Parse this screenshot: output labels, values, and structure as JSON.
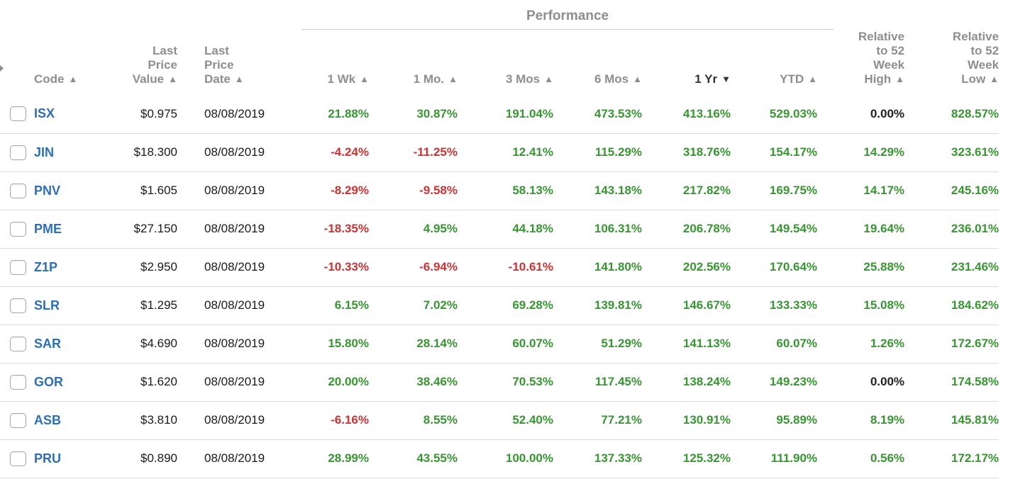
{
  "colors": {
    "positive": "#389632",
    "negative": "#cc3333",
    "neutral": "#222222",
    "code_link": "#2e6eb5",
    "header_gray": "#8e8e8e",
    "header_active": "#333333",
    "row_divider": "#dcdcdc",
    "group_line": "#cccccc"
  },
  "sort_icons": {
    "asc": "▲",
    "desc": "▼"
  },
  "table": {
    "group_header": {
      "label": "Performance"
    },
    "columns": [
      {
        "id": "select",
        "lines": []
      },
      {
        "id": "code",
        "lines": [
          "Code"
        ],
        "sort": "asc"
      },
      {
        "id": "value",
        "lines": [
          "Last",
          "Price",
          "Value"
        ],
        "sort": "asc"
      },
      {
        "id": "date",
        "lines": [
          "Last",
          "Price",
          "Date"
        ],
        "sort": "asc"
      },
      {
        "id": "wk1",
        "lines": [
          "1 Wk"
        ],
        "sort": "asc"
      },
      {
        "id": "mo1",
        "lines": [
          "1 Mo."
        ],
        "sort": "asc"
      },
      {
        "id": "mos3",
        "lines": [
          "3 Mos"
        ],
        "sort": "asc"
      },
      {
        "id": "mos6",
        "lines": [
          "6 Mos"
        ],
        "sort": "asc"
      },
      {
        "id": "yr1",
        "lines": [
          "1 Yr"
        ],
        "sort": "desc",
        "active": true
      },
      {
        "id": "ytd",
        "lines": [
          "YTD"
        ],
        "sort": "asc"
      },
      {
        "id": "rel_high",
        "lines": [
          "Relative",
          "to 52",
          "Week",
          "High"
        ],
        "sort": "asc"
      },
      {
        "id": "rel_low",
        "lines": [
          "Relative",
          "to 52",
          "Week",
          "Low"
        ],
        "sort": "asc"
      }
    ],
    "rows": [
      {
        "code": "ISX",
        "value": "$0.975",
        "date": "08/08/2019",
        "perf": [
          "21.88%",
          "30.87%",
          "191.04%",
          "473.53%",
          "413.16%",
          "529.03%",
          "0.00%",
          "828.57%"
        ]
      },
      {
        "code": "JIN",
        "value": "$18.300",
        "date": "08/08/2019",
        "perf": [
          "-4.24%",
          "-11.25%",
          "12.41%",
          "115.29%",
          "318.76%",
          "154.17%",
          "14.29%",
          "323.61%"
        ]
      },
      {
        "code": "PNV",
        "value": "$1.605",
        "date": "08/08/2019",
        "perf": [
          "-8.29%",
          "-9.58%",
          "58.13%",
          "143.18%",
          "217.82%",
          "169.75%",
          "14.17%",
          "245.16%"
        ]
      },
      {
        "code": "PME",
        "value": "$27.150",
        "date": "08/08/2019",
        "perf": [
          "-18.35%",
          "4.95%",
          "44.18%",
          "106.31%",
          "206.78%",
          "149.54%",
          "19.64%",
          "236.01%"
        ]
      },
      {
        "code": "Z1P",
        "value": "$2.950",
        "date": "08/08/2019",
        "perf": [
          "-10.33%",
          "-6.94%",
          "-10.61%",
          "141.80%",
          "202.56%",
          "170.64%",
          "25.88%",
          "231.46%"
        ]
      },
      {
        "code": "SLR",
        "value": "$1.295",
        "date": "08/08/2019",
        "perf": [
          "6.15%",
          "7.02%",
          "69.28%",
          "139.81%",
          "146.67%",
          "133.33%",
          "15.08%",
          "184.62%"
        ]
      },
      {
        "code": "SAR",
        "value": "$4.690",
        "date": "08/08/2019",
        "perf": [
          "15.80%",
          "28.14%",
          "60.07%",
          "51.29%",
          "141.13%",
          "60.07%",
          "1.26%",
          "172.67%"
        ]
      },
      {
        "code": "GOR",
        "value": "$1.620",
        "date": "08/08/2019",
        "perf": [
          "20.00%",
          "38.46%",
          "70.53%",
          "117.45%",
          "138.24%",
          "149.23%",
          "0.00%",
          "174.58%"
        ]
      },
      {
        "code": "ASB",
        "value": "$3.810",
        "date": "08/08/2019",
        "perf": [
          "-6.16%",
          "8.55%",
          "52.40%",
          "77.21%",
          "130.91%",
          "95.89%",
          "8.19%",
          "145.81%"
        ]
      },
      {
        "code": "PRU",
        "value": "$0.890",
        "date": "08/08/2019",
        "perf": [
          "28.99%",
          "43.55%",
          "100.00%",
          "137.33%",
          "125.32%",
          "111.90%",
          "0.56%",
          "172.17%"
        ]
      }
    ]
  }
}
